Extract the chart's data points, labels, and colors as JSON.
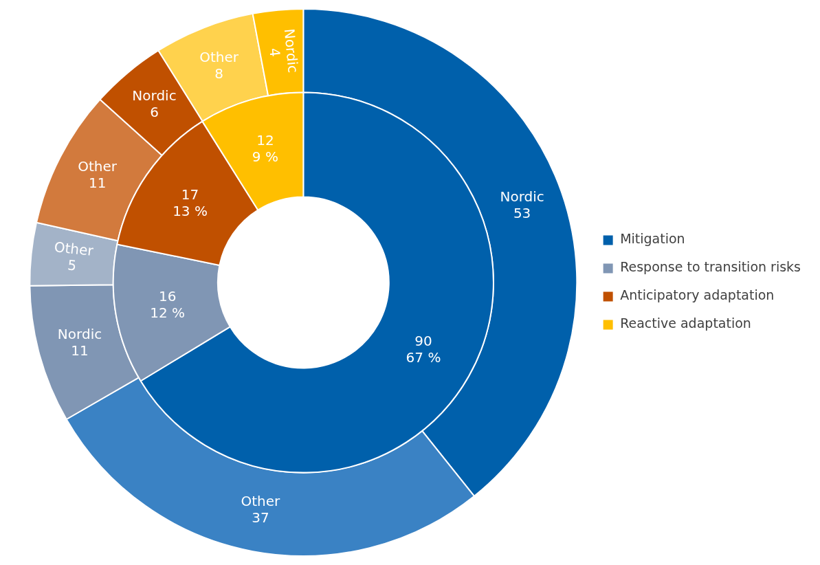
{
  "chart_data": [
    {
      "type": "donut",
      "categories": [
        "Mitigation",
        "Response to transition risks",
        "Anticipatory adaptation",
        "Reactive adaptation"
      ],
      "values": [
        67,
        12,
        13,
        9
      ],
      "value_labels": [
        "90\n67 %",
        "16\n12 %",
        "17\n13 %",
        "12\n9 %"
      ],
      "colors": [
        "#0060ab",
        "#8096b4",
        "#c05000",
        "#ffbf00"
      ],
      "legend": "right"
    },
    {
      "type": "donut",
      "categories": [
        "Nordic",
        "Other",
        "Nordic",
        "Other",
        "Other",
        "Nordic",
        "Other",
        "Nordic"
      ],
      "values": [
        53,
        37,
        11,
        5,
        11,
        6,
        8,
        4
      ],
      "colors": [
        "#0060ab",
        "#3a82c4",
        "#8096b4",
        "#a3b3c8",
        "#d27a3d",
        "#c05000",
        "#ffd24d",
        "#ffbf00"
      ],
      "data_labels": true
    }
  ]
}
